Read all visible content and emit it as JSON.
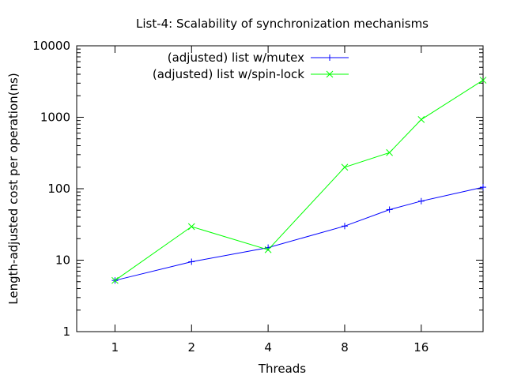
{
  "chart_data": {
    "type": "line",
    "title": "List-4: Scalability of synchronization mechanisms",
    "xlabel": "Threads",
    "ylabel": "Length-adjusted cost per operation(ns)",
    "x_scale": "log2",
    "y_scale": "log10",
    "xlim": [
      0.7071,
      28
    ],
    "ylim": [
      1,
      10000
    ],
    "x_ticks": [
      1,
      2,
      4,
      8,
      16
    ],
    "x_tick_labels": [
      "1",
      "2",
      "4",
      "8",
      "16"
    ],
    "y_ticks": [
      1,
      10,
      100,
      1000,
      10000
    ],
    "y_tick_labels": [
      "1",
      "10",
      "100",
      "1000",
      "10000"
    ],
    "grid": false,
    "legend_position": "top-left-center",
    "series": [
      {
        "name": "(adjusted) list w/mutex",
        "color": "#0000ff",
        "marker": "plus",
        "points": [
          {
            "x": 1,
            "y": 5.2
          },
          {
            "x": 2,
            "y": 9.5
          },
          {
            "x": 4,
            "y": 15
          },
          {
            "x": 8,
            "y": 30
          },
          {
            "x": 12,
            "y": 51
          },
          {
            "x": 16,
            "y": 67
          },
          {
            "x": 28,
            "y": 105
          }
        ]
      },
      {
        "name": "(adjusted) list w/spin-lock",
        "color": "#00ff00",
        "marker": "cross",
        "points": [
          {
            "x": 1,
            "y": 5.2
          },
          {
            "x": 2,
            "y": 29.5
          },
          {
            "x": 4,
            "y": 14
          },
          {
            "x": 8,
            "y": 200
          },
          {
            "x": 12,
            "y": 320
          },
          {
            "x": 16,
            "y": 930
          },
          {
            "x": 28,
            "y": 3300
          }
        ]
      }
    ]
  }
}
